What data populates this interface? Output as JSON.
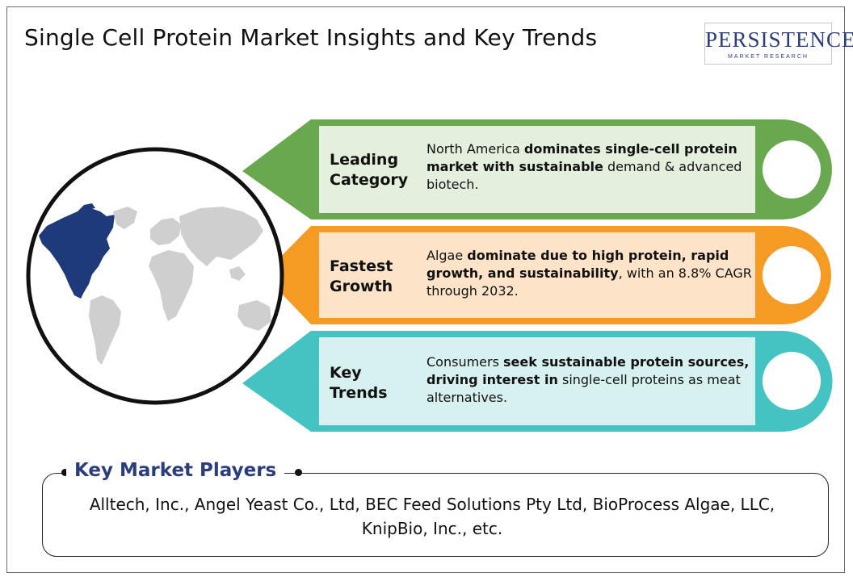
{
  "title": "Single Cell Protein Market Insights and Key Trends",
  "logo": {
    "brand": "PERSISTENCE",
    "sub": "MARKET RESEARCH"
  },
  "colors": {
    "green": "#6aa84f",
    "orange": "#f59b24",
    "teal": "#45c2c2",
    "brand": "#2b3d7a"
  },
  "insights": [
    {
      "label_line1": "Leading",
      "label_line2": "Category",
      "desc": [
        {
          "t": "North America "
        },
        {
          "b": "dominates single-cell protein market with sustainable"
        },
        {
          "t": " demand & advanced biotech."
        }
      ]
    },
    {
      "label_line1": "Fastest",
      "label_line2": "Growth",
      "desc": [
        {
          "t": "Algae "
        },
        {
          "b": "dominate due to high protein, rapid growth, and sustainability"
        },
        {
          "t": ", with an 8.8% CAGR through 2032."
        }
      ]
    },
    {
      "label_line1": "Key",
      "label_line2": "Trends",
      "desc": [
        {
          "t": "Consumers "
        },
        {
          "b": "seek sustainable protein sources, driving interest in"
        },
        {
          "t": " single-cell proteins as meat alternatives."
        }
      ]
    }
  ],
  "players": {
    "title": "Key Market Players",
    "text": "Alltech, Inc., Angel Yeast Co., Ltd, BEC Feed Solutions Pty Ltd, BioProcess Algae, LLC, KnipBio, Inc., etc."
  }
}
